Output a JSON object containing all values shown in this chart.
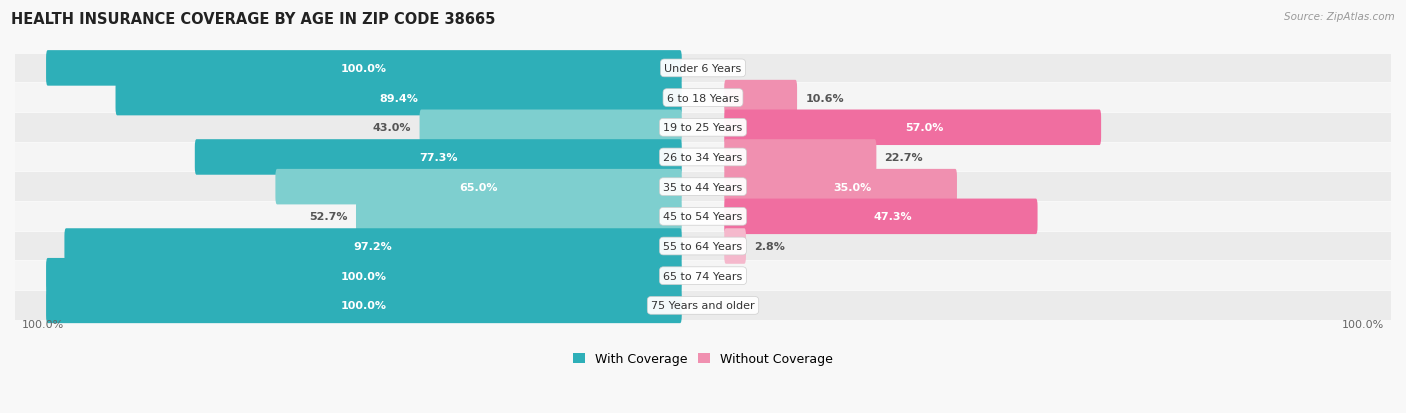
{
  "title": "HEALTH INSURANCE COVERAGE BY AGE IN ZIP CODE 38665",
  "source": "Source: ZipAtlas.com",
  "categories": [
    "Under 6 Years",
    "6 to 18 Years",
    "19 to 25 Years",
    "26 to 34 Years",
    "35 to 44 Years",
    "45 to 54 Years",
    "55 to 64 Years",
    "65 to 74 Years",
    "75 Years and older"
  ],
  "with_coverage": [
    100.0,
    89.4,
    43.0,
    77.3,
    65.0,
    52.7,
    97.2,
    100.0,
    100.0
  ],
  "without_coverage": [
    0.0,
    10.6,
    57.0,
    22.7,
    35.0,
    47.3,
    2.8,
    0.0,
    0.0
  ],
  "color_with_dark": "#2EAFB8",
  "color_with_light": "#7ECFCF",
  "color_without_dark": "#F06EA0",
  "color_without_mid": "#F090B0",
  "color_without_light": "#F5B8CC",
  "row_bg_odd": "#EBEBEB",
  "row_bg_even": "#F5F5F5",
  "fig_bg": "#F8F8F8",
  "title_fontsize": 10.5,
  "label_fontsize": 8,
  "value_fontsize": 8,
  "tick_fontsize": 8,
  "legend_fontsize": 9
}
